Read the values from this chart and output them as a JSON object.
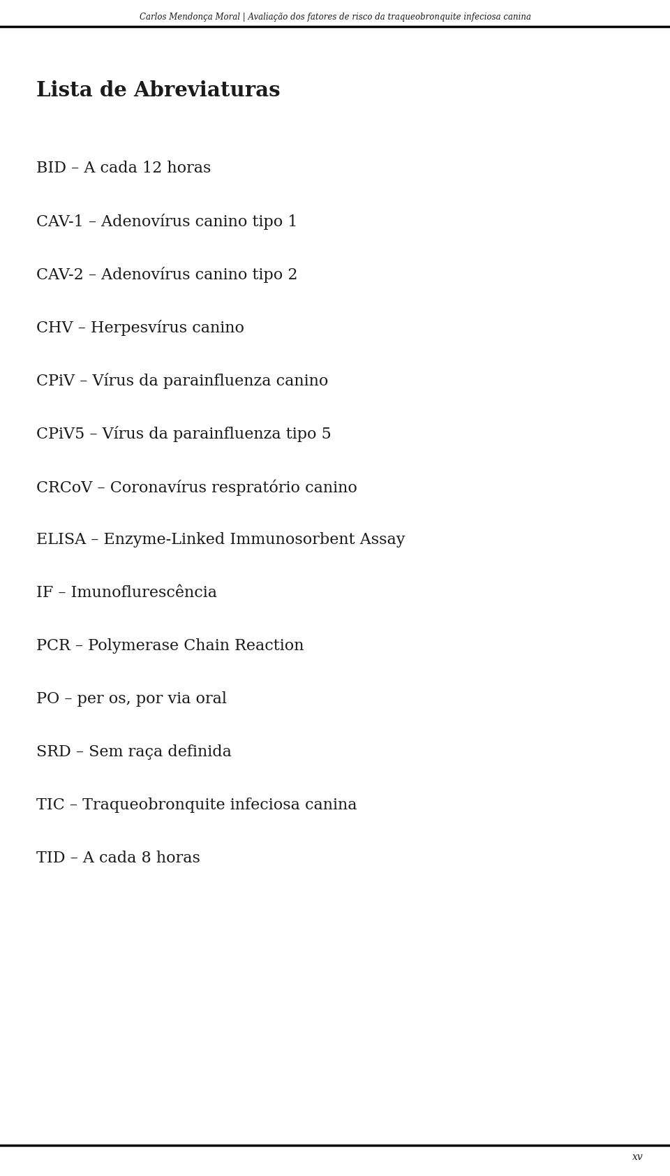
{
  "header_text": "Carlos Mendonça Moral | Avaliação dos fatores de risco da traqueobronquite infeciosa canina",
  "title": "Lista de Abreviaturas",
  "entries": [
    "BID – A cada 12 horas",
    "CAV-1 – Adenovírus canino tipo 1",
    "CAV-2 – Adenovírus canino tipo 2",
    "CHV – Herpesvírus canino",
    "CPiV – Vírus da parainfluenza canino",
    "CPiV5 – Vírus da parainfluenza tipo 5",
    "CRCoV – Coronavírus respratório canino",
    "ELISA – Enzyme-Linked Immunosorbent Assay",
    "IF – Imunoflurescência",
    "PCR – Polymerase Chain Reaction",
    "PO – per os, por via oral",
    "SRD – Sem raça definida",
    "TIC – Traqueobronquite infeciosa canina",
    "TID – A cada 8 horas"
  ],
  "footer_text": "xv",
  "bg_color": "#ffffff",
  "text_color": "#1a1a1a",
  "header_color": "#1a1a1a",
  "header_fontsize": 8.5,
  "title_fontsize": 21,
  "entry_fontsize": 16,
  "footer_fontsize": 10,
  "fig_width": 9.6,
  "fig_height": 16.84,
  "fig_dpi": 100
}
